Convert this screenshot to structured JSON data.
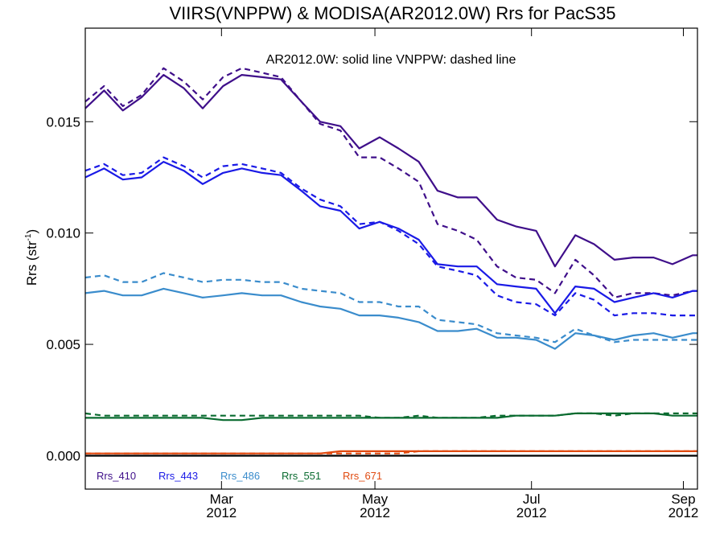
{
  "chart_data": {
    "type": "line",
    "title": "VIIRS(VNPPW) & MODISA(AR2012.0W)  Rrs for PacS35",
    "annotation": "AR2012.0W: solid line   VNPPW: dashed line",
    "ylabel": "Rrs (str",
    "ylabel_sup": "-1",
    "ylabel_tail": ")",
    "ylim": [
      -0.0015,
      0.0192
    ],
    "xlim": [
      0,
      39.1
    ],
    "grid": false,
    "y_ticks": [
      {
        "value": 0.0,
        "label": "0.000"
      },
      {
        "value": 0.005,
        "label": "0.005"
      },
      {
        "value": 0.01,
        "label": "0.010"
      },
      {
        "value": 0.015,
        "label": "0.015"
      }
    ],
    "x_ticks": [
      {
        "x": 8.7,
        "month": "Mar",
        "year": "2012"
      },
      {
        "x": 18.5,
        "month": "May",
        "year": "2012"
      },
      {
        "x": 28.5,
        "month": "Jul",
        "year": "2012"
      },
      {
        "x": 38.2,
        "month": "Sep",
        "year": "2012"
      }
    ],
    "x": [
      0,
      1.2,
      2.4,
      3.6,
      5,
      6.3,
      7.5,
      8.8,
      10,
      11.3,
      12.5,
      13.8,
      15,
      16.3,
      17.5,
      18.8,
      20,
      21.3,
      22.5,
      23.8,
      25,
      26.3,
      27.5,
      28.8,
      30,
      31.3,
      32.5,
      33.8,
      35,
      36.3,
      37.5,
      38.8,
      39.1
    ],
    "solid_line_style": "AR2012.0W",
    "dashed_line_style": "VNPPW",
    "legend_placement": "bottom-left",
    "series": [
      {
        "name": "Rrs_410",
        "color": "#3f0f8a",
        "solid": [
          0.0156,
          0.0164,
          0.0155,
          0.0161,
          0.0171,
          0.0165,
          0.0156,
          0.0166,
          0.0171,
          0.017,
          0.0169,
          0.0159,
          0.015,
          0.0148,
          0.0138,
          0.0143,
          0.0138,
          0.0132,
          0.0119,
          0.0116,
          0.0116,
          0.0106,
          0.0103,
          0.0101,
          0.0085,
          0.0099,
          0.0095,
          0.0088,
          0.0089,
          0.0089,
          0.0086,
          0.009,
          0.009
        ],
        "dashed": [
          0.0159,
          0.0166,
          0.0157,
          0.0162,
          0.0174,
          0.0168,
          0.016,
          0.017,
          0.0174,
          0.0172,
          0.017,
          0.0159,
          0.0149,
          0.0146,
          0.0134,
          0.0134,
          0.0129,
          0.0123,
          0.0104,
          0.0101,
          0.0097,
          0.0085,
          0.008,
          0.0079,
          0.0073,
          0.0088,
          0.0081,
          0.0071,
          0.0073,
          0.0073,
          0.0072,
          0.0074,
          0.0074
        ]
      },
      {
        "name": "Rrs_443",
        "color": "#1a1ae6",
        "solid": [
          0.0125,
          0.0129,
          0.0124,
          0.0125,
          0.0132,
          0.0128,
          0.0122,
          0.0127,
          0.0129,
          0.0127,
          0.0126,
          0.0119,
          0.0112,
          0.011,
          0.0102,
          0.0105,
          0.0102,
          0.0097,
          0.0086,
          0.0085,
          0.0085,
          0.0077,
          0.0076,
          0.0075,
          0.0064,
          0.0076,
          0.0075,
          0.0069,
          0.0071,
          0.0073,
          0.0071,
          0.0074,
          0.0074
        ],
        "dashed": [
          0.0128,
          0.0131,
          0.0126,
          0.0127,
          0.0134,
          0.013,
          0.0125,
          0.013,
          0.0131,
          0.0129,
          0.0127,
          0.012,
          0.0115,
          0.0112,
          0.0104,
          0.0105,
          0.0101,
          0.0095,
          0.0085,
          0.0083,
          0.0081,
          0.0072,
          0.0069,
          0.0068,
          0.0063,
          0.0073,
          0.007,
          0.0063,
          0.0064,
          0.0064,
          0.0063,
          0.0063,
          0.0063
        ]
      },
      {
        "name": "Rrs_486",
        "color": "#3a8ccc",
        "solid": [
          0.0073,
          0.0074,
          0.0072,
          0.0072,
          0.0075,
          0.0073,
          0.0071,
          0.0072,
          0.0073,
          0.0072,
          0.0072,
          0.0069,
          0.0067,
          0.0066,
          0.0063,
          0.0063,
          0.0062,
          0.006,
          0.0056,
          0.0056,
          0.0057,
          0.0053,
          0.0053,
          0.0052,
          0.0048,
          0.0055,
          0.0054,
          0.0052,
          0.0054,
          0.0055,
          0.0053,
          0.0055,
          0.0055
        ],
        "dashed": [
          0.008,
          0.0081,
          0.0078,
          0.0078,
          0.0082,
          0.008,
          0.0078,
          0.0079,
          0.0079,
          0.0078,
          0.0078,
          0.0075,
          0.0074,
          0.0073,
          0.0069,
          0.0069,
          0.0067,
          0.0067,
          0.0061,
          0.006,
          0.0059,
          0.0055,
          0.0054,
          0.0053,
          0.0051,
          0.0057,
          0.0054,
          0.0051,
          0.0052,
          0.0052,
          0.0052,
          0.0052,
          0.0052
        ]
      },
      {
        "name": "Rrs_551",
        "color": "#0a6b30",
        "solid": [
          0.0017,
          0.0017,
          0.0017,
          0.0017,
          0.0017,
          0.0017,
          0.0017,
          0.0016,
          0.0016,
          0.0017,
          0.0017,
          0.0017,
          0.0017,
          0.0017,
          0.0017,
          0.0017,
          0.0017,
          0.0017,
          0.0017,
          0.0017,
          0.0017,
          0.0017,
          0.0018,
          0.0018,
          0.0018,
          0.0019,
          0.0019,
          0.0019,
          0.0019,
          0.0019,
          0.0018,
          0.0018,
          0.0018
        ],
        "dashed": [
          0.0019,
          0.0018,
          0.0018,
          0.0018,
          0.0018,
          0.0018,
          0.0018,
          0.0018,
          0.0018,
          0.0018,
          0.0018,
          0.0018,
          0.0018,
          0.0018,
          0.0018,
          0.0017,
          0.0017,
          0.0018,
          0.0017,
          0.0017,
          0.0017,
          0.0018,
          0.0018,
          0.0018,
          0.0018,
          0.0019,
          0.0019,
          0.0018,
          0.0019,
          0.0019,
          0.0019,
          0.0019,
          0.0019
        ]
      },
      {
        "name": "Rrs_671",
        "color": "#e04a10",
        "solid": [
          0.0001,
          0.0001,
          0.0001,
          0.0001,
          0.0001,
          0.0001,
          0.0001,
          0.0001,
          0.0001,
          0.0001,
          0.0001,
          0.0001,
          0.0001,
          0.0002,
          0.0002,
          0.0002,
          0.0002,
          0.0002,
          0.0002,
          0.0002,
          0.0002,
          0.0002,
          0.0002,
          0.0002,
          0.0002,
          0.0002,
          0.0002,
          0.0002,
          0.0002,
          0.0002,
          0.0002,
          0.0002,
          0.0002
        ],
        "dashed": [
          0.0001,
          0.0001,
          0.0001,
          0.0001,
          0.0001,
          0.0001,
          0.0001,
          0.0001,
          0.0001,
          0.0001,
          0.0001,
          0.0001,
          0.0001,
          0.0001,
          0.0001,
          0.0001,
          0.0001,
          0.0002,
          0.0002,
          0.0002,
          0.0002,
          0.0002,
          0.0002,
          0.0002,
          0.0002,
          0.0002,
          0.0002,
          0.0002,
          0.0002,
          0.0002,
          0.0002,
          0.0002,
          0.0002
        ]
      }
    ],
    "zero_line_color": "#000000"
  }
}
